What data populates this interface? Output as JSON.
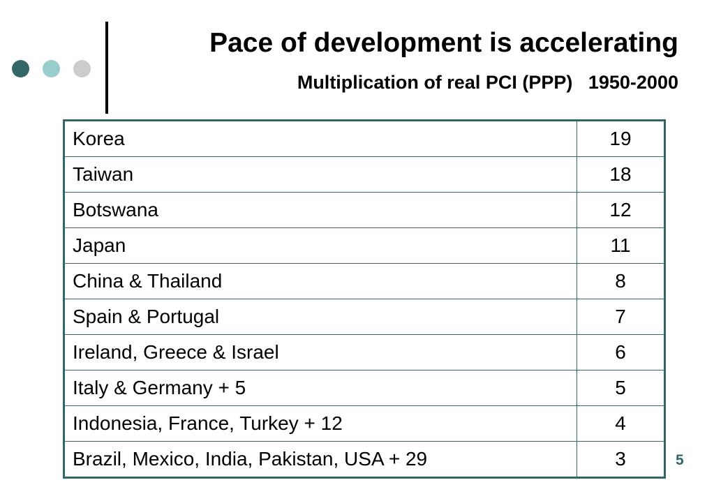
{
  "slide": {
    "title": "Pace of development is accelerating",
    "subtitle": "Multiplication of real PCI (PPP)   1950-2000",
    "page_number": "5"
  },
  "colors": {
    "dot_dark": "#336666",
    "dot_light": "#99cccc",
    "dot_grey": "#cccccc",
    "table_border": "#336666",
    "page_number": "#336666"
  },
  "table": {
    "rows": [
      {
        "label": "Korea",
        "value": "19"
      },
      {
        "label": "Taiwan",
        "value": "18"
      },
      {
        "label": "Botswana",
        "value": "12"
      },
      {
        "label": "Japan",
        "value": "11"
      },
      {
        "label": "China & Thailand",
        "value": "8"
      },
      {
        "label": "Spain & Portugal",
        "value": "7"
      },
      {
        "label": "Ireland, Greece & Israel",
        "value": "6"
      },
      {
        "label": "Italy & Germany + 5",
        "value": "5"
      },
      {
        "label": "Indonesia, France, Turkey + 12",
        "value": "4"
      },
      {
        "label": "Brazil, Mexico, India, Pakistan, USA + 29",
        "value": "3"
      }
    ]
  }
}
